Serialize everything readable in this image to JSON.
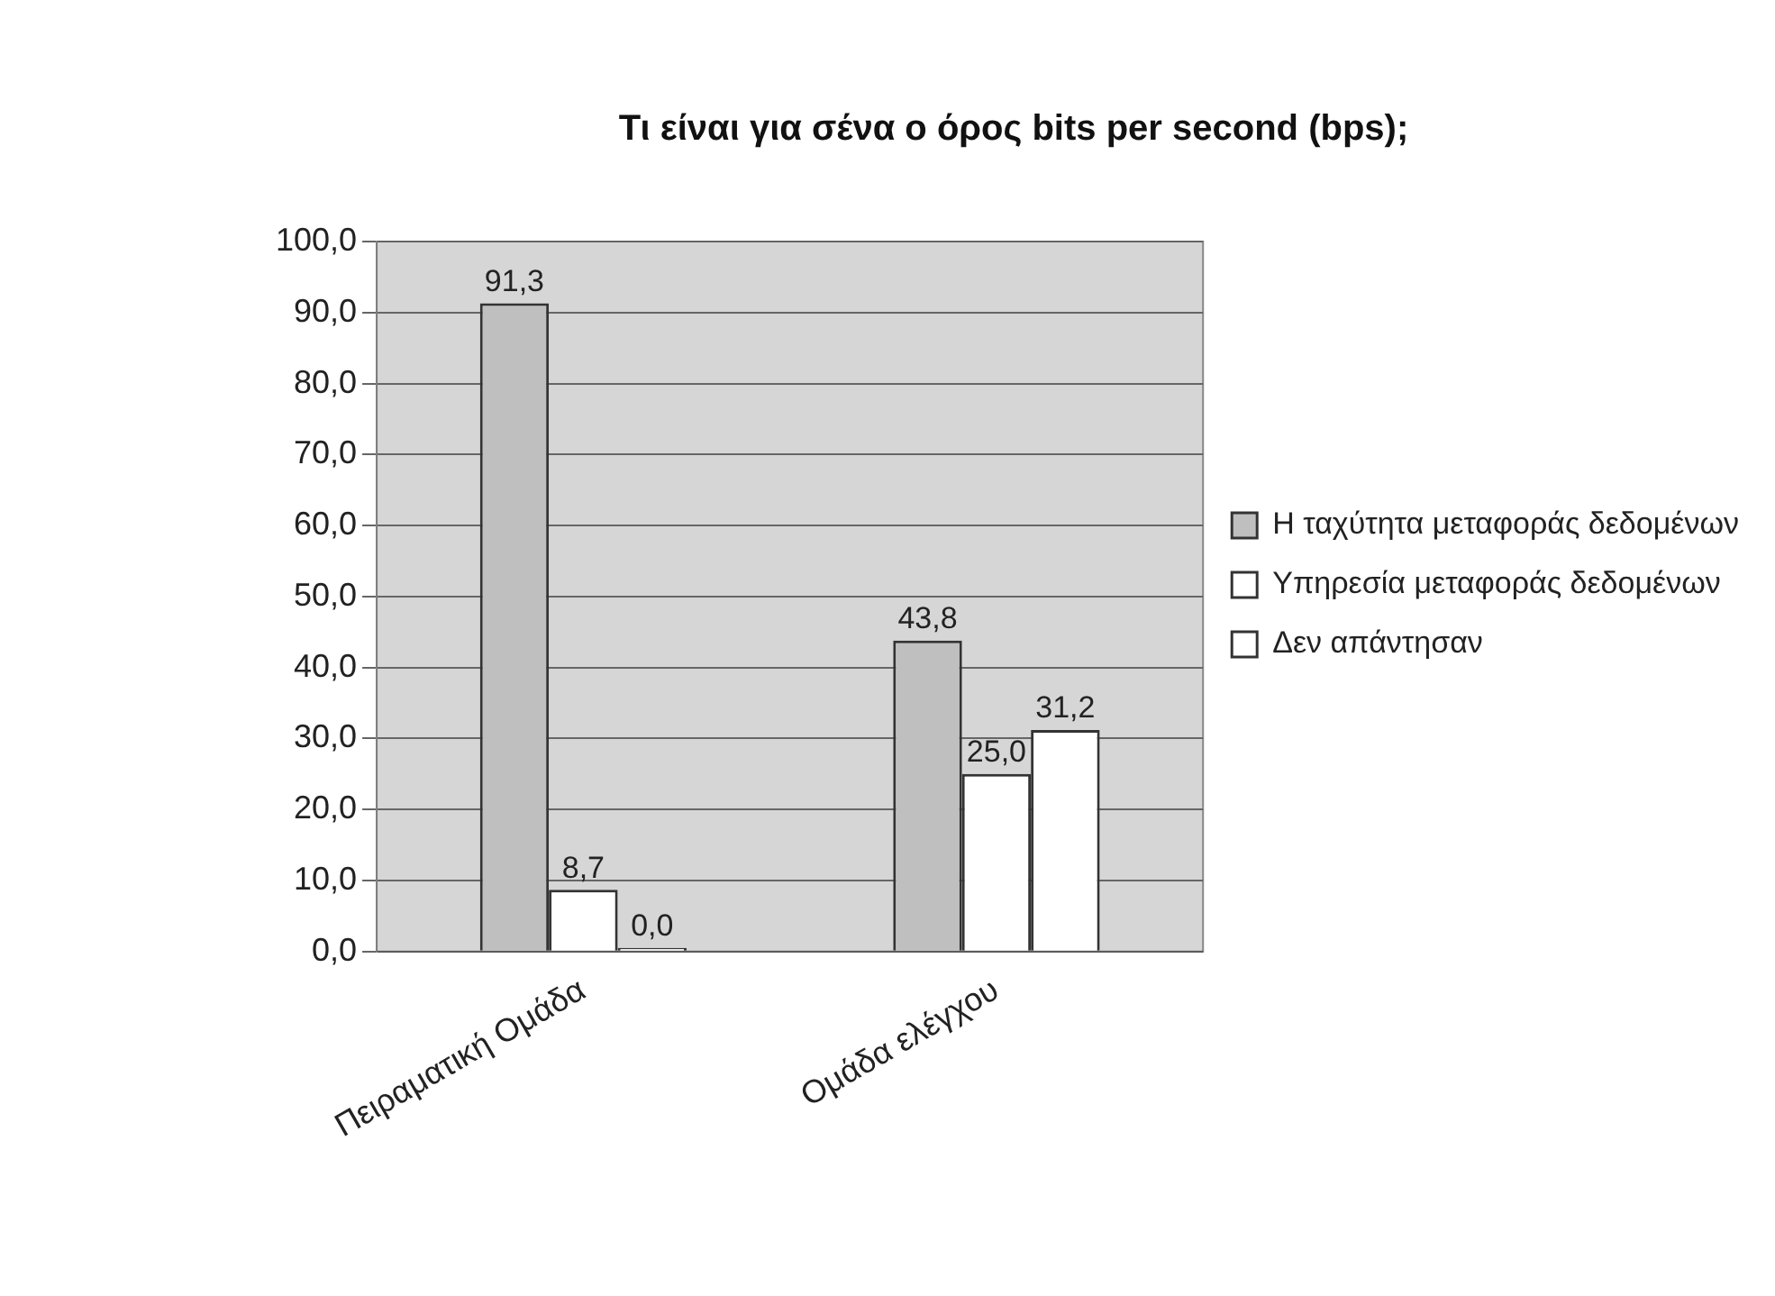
{
  "chart_data": {
    "type": "bar",
    "title": "Τι είναι για σένα ο όρος bits per second (bps);",
    "categories": [
      "Πειραματική Ομάδα",
      "Ομάδα ελέγχου"
    ],
    "series": [
      {
        "name": "Η ταχύτητα μεταφοράς δεδομένων",
        "color": "#bfbfbf",
        "values": [
          91.3,
          43.8
        ],
        "value_labels": [
          "91,3",
          "43,8"
        ]
      },
      {
        "name": "Υπηρεσία μεταφοράς δεδομένων",
        "color": "#ffffff",
        "values": [
          8.7,
          25.0
        ],
        "value_labels": [
          "8,7",
          "25,0"
        ]
      },
      {
        "name": "Δεν απάντησαν",
        "color": "#ffffff",
        "values": [
          0,
          31.2
        ],
        "value_labels": [
          "0,0",
          "31,2"
        ]
      }
    ],
    "ylim": [
      0,
      100
    ],
    "yticks": [
      {
        "value": 0,
        "label": "0,0"
      },
      {
        "value": 10,
        "label": "10,0"
      },
      {
        "value": 20,
        "label": "20,0"
      },
      {
        "value": 30,
        "label": "30,0"
      },
      {
        "value": 40,
        "label": "40,0"
      },
      {
        "value": 50,
        "label": "50,0"
      },
      {
        "value": 60,
        "label": "60,0"
      },
      {
        "value": 70,
        "label": "70,0"
      },
      {
        "value": 80,
        "label": "80,0"
      },
      {
        "value": 90,
        "label": "90,0"
      },
      {
        "value": 100,
        "label": "100,0"
      }
    ],
    "grid": "y",
    "legend": "right"
  }
}
